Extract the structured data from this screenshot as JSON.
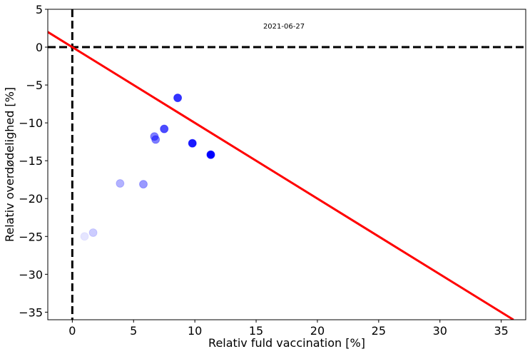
{
  "chart_data": {
    "type": "scatter",
    "title": "",
    "annotation": "2021-06-27",
    "xlabel": "Relativ fuld vaccination [%]",
    "ylabel": "Relativ overdødelighed [%]",
    "xlim": [
      -2,
      37
    ],
    "ylim": [
      -36,
      5
    ],
    "xticks": [
      0,
      5,
      10,
      15,
      20,
      25,
      30,
      35
    ],
    "yticks": [
      5,
      0,
      -5,
      -10,
      -15,
      -20,
      -25,
      -30,
      -35
    ],
    "xtick_labels": [
      "0",
      "5",
      "10",
      "15",
      "20",
      "25",
      "30",
      "35"
    ],
    "ytick_labels": [
      "5",
      "0",
      "−5",
      "−10",
      "−15",
      "−20",
      "−25",
      "−30",
      "−35"
    ],
    "reference_lines": {
      "x0": 0,
      "y0": 0,
      "style": "dashed",
      "color": "#000000"
    },
    "series": [
      {
        "name": "points",
        "color": "#0000ff",
        "points": [
          {
            "x": 1.0,
            "y": -25.0,
            "alpha": 0.1
          },
          {
            "x": 1.7,
            "y": -24.5,
            "alpha": 0.2
          },
          {
            "x": 3.9,
            "y": -18.0,
            "alpha": 0.3
          },
          {
            "x": 5.8,
            "y": -18.1,
            "alpha": 0.4
          },
          {
            "x": 6.7,
            "y": -11.8,
            "alpha": 0.5
          },
          {
            "x": 6.8,
            "y": -12.2,
            "alpha": 0.5
          },
          {
            "x": 7.5,
            "y": -10.8,
            "alpha": 0.7
          },
          {
            "x": 8.6,
            "y": -6.7,
            "alpha": 0.8
          },
          {
            "x": 9.8,
            "y": -12.7,
            "alpha": 0.9
          },
          {
            "x": 11.3,
            "y": -14.2,
            "alpha": 1.0
          }
        ]
      }
    ],
    "fit_line": {
      "color": "#ff0000",
      "x_start": -2,
      "y_start": 2.0,
      "x_end": 36.0,
      "y_end": -36.0
    }
  }
}
